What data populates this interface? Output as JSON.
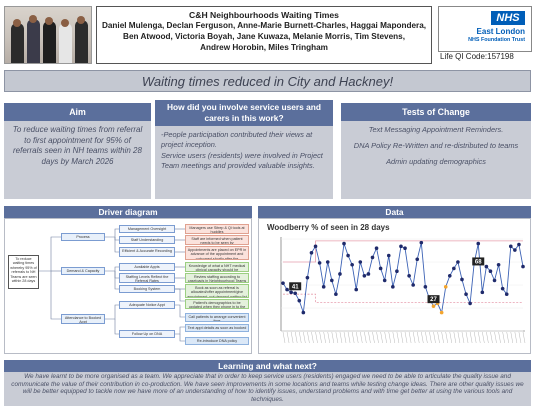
{
  "header": {
    "title": "C&H Neighbourhoods Waiting Times",
    "authors_line1": "Daniel Mulenga, Declan Ferguson, Anne-Marie Burnett-Charles, Haggai Mapondera,",
    "authors_line2": "Ben Atwood, Victoria Boyah, Jane Kuwaza, Melanie Morris, Tim Stevens,",
    "authors_line3": "Andrew Horobin, Miles Tringham",
    "nhs_logo": "NHS",
    "org_line1": "East London",
    "org_line2": "NHS Foundation Trust",
    "qi_code": "Life QI Code:157198"
  },
  "banner": "Waiting times reduced in City and Hackney!",
  "aim": {
    "heading": "Aim",
    "text": "To reduce waiting times from referral to first appointment for 95% of referrals seen in NH teams within 28 days by March 2026"
  },
  "involvement": {
    "heading": "How did you involve service users and carers in this work?",
    "para1": "-People participation contributed their views at project inception.",
    "para2": "Service users (residents) were involved in Project Team meetings and provided valuable insights."
  },
  "tests": {
    "heading": "Tests of Change",
    "items": [
      "Text Messaging Appointment Reminders.",
      "DNA Policy Re-Written and re-distributed to teams",
      "Admin updating demographics"
    ]
  },
  "driver": {
    "heading": "Driver diagram",
    "goal": "To reduce waiting times whereby 95% of referrals to NH Teams are seen within 28 days",
    "primary": [
      "Process",
      "Demand & Capacity",
      "Attendance to Booked Appt"
    ],
    "secondary": [
      "Management Oversight",
      "Staff Understanding",
      "Efficient & Accurate Recording",
      "Available Appts",
      "Staffing Levels Reflect the Referral Rates",
      "Booking System",
      "Adequate Notice Appt",
      "Follow Up on DNA"
    ],
    "changes": [
      "Managers use Sitrep & Qi tools at huddles",
      "Staff are informed when patient needs to be seen by",
      "Appointments are placed on EPR in advance of the appointment and outcomed shortly after the appointment",
      "Knowledge of what a NHT medical clinical capacity should be",
      "Review staffing according to caseloads in Neighbourhood Teams",
      "Book as soon as referral is allocated/offer appointment/give appointment, not demand waiting list",
      "Patient's demographics to be updated when they phone in to the service",
      "Call patients to arrange convenient time",
      "Text appt details as soon as booked",
      "Re-introduce DNA policy"
    ]
  },
  "data": {
    "heading": "Data"
  },
  "chart_data": {
    "type": "line",
    "title": "Woodberry % of seen in 28 days",
    "ylim": [
      0,
      100
    ],
    "series": [
      {
        "values": [
          52,
          45,
          42,
          41,
          33,
          20,
          58,
          85,
          92,
          74,
          48,
          75,
          55,
          40,
          62,
          95,
          82,
          72,
          45,
          75,
          60,
          62,
          80,
          90,
          68,
          55,
          82,
          48,
          65,
          92,
          90,
          60,
          50,
          78,
          96,
          48,
          35,
          27,
          30,
          20,
          48,
          60,
          68,
          75,
          56,
          40,
          30,
          74,
          95,
          42,
          70,
          65,
          55,
          72,
          46,
          40,
          92,
          88,
          94,
          70
        ]
      },
      {
        "values": [
          75,
          75,
          75,
          75,
          75,
          75,
          75,
          75,
          98,
          98,
          98,
          98,
          98,
          98,
          98,
          98,
          98,
          98,
          98,
          98,
          98,
          98,
          98,
          98,
          98,
          98,
          98,
          98,
          98,
          98,
          98,
          98,
          98,
          98,
          98,
          98,
          98,
          98,
          98,
          98,
          98,
          98,
          98,
          98,
          98,
          98,
          98,
          98,
          98,
          98,
          98,
          98,
          98,
          98,
          98,
          98,
          98,
          98,
          98,
          98
        ]
      },
      {
        "values": [
          40,
          40,
          40,
          40,
          40,
          40,
          40,
          40,
          31,
          31,
          31,
          31,
          31,
          31,
          31,
          31,
          31,
          31,
          31,
          31,
          31,
          31,
          31,
          31,
          31,
          31,
          31,
          31,
          31,
          31,
          31,
          31,
          31,
          31,
          31,
          31,
          31,
          31,
          31,
          31,
          31,
          31,
          31,
          31,
          31,
          31,
          31,
          31,
          31,
          31,
          31,
          31,
          31,
          31,
          31,
          31,
          31,
          31,
          31,
          31
        ]
      }
    ],
    "annotations": [
      "41",
      "27",
      "68"
    ],
    "colors": {
      "series": "#3c62b5",
      "limit": "#e79fae",
      "marker": "#1f2a6b",
      "annotation": "#f3a52e",
      "label_box": "#222222"
    }
  },
  "learning": {
    "heading": "Learning and what next?",
    "text": "We have learnt to be more organised as a team. We appreciate that in order to keep service users (residents) engaged we need to be able to articulate the quality issue and communicate the value of their contribution in co-production. We have seen improvements in some locations and teams while testing change ideas. There are other quality issues we will be better equipped to tackle now we have more of an understanding of how to identify issues, understand problems and with time get better at using the various tools and techniques."
  },
  "colors": {
    "section_header": "#5b6f9c",
    "section_body": "#c9ccd5",
    "banner": "#c4c8d1",
    "nhs_blue": "#005eb8"
  }
}
